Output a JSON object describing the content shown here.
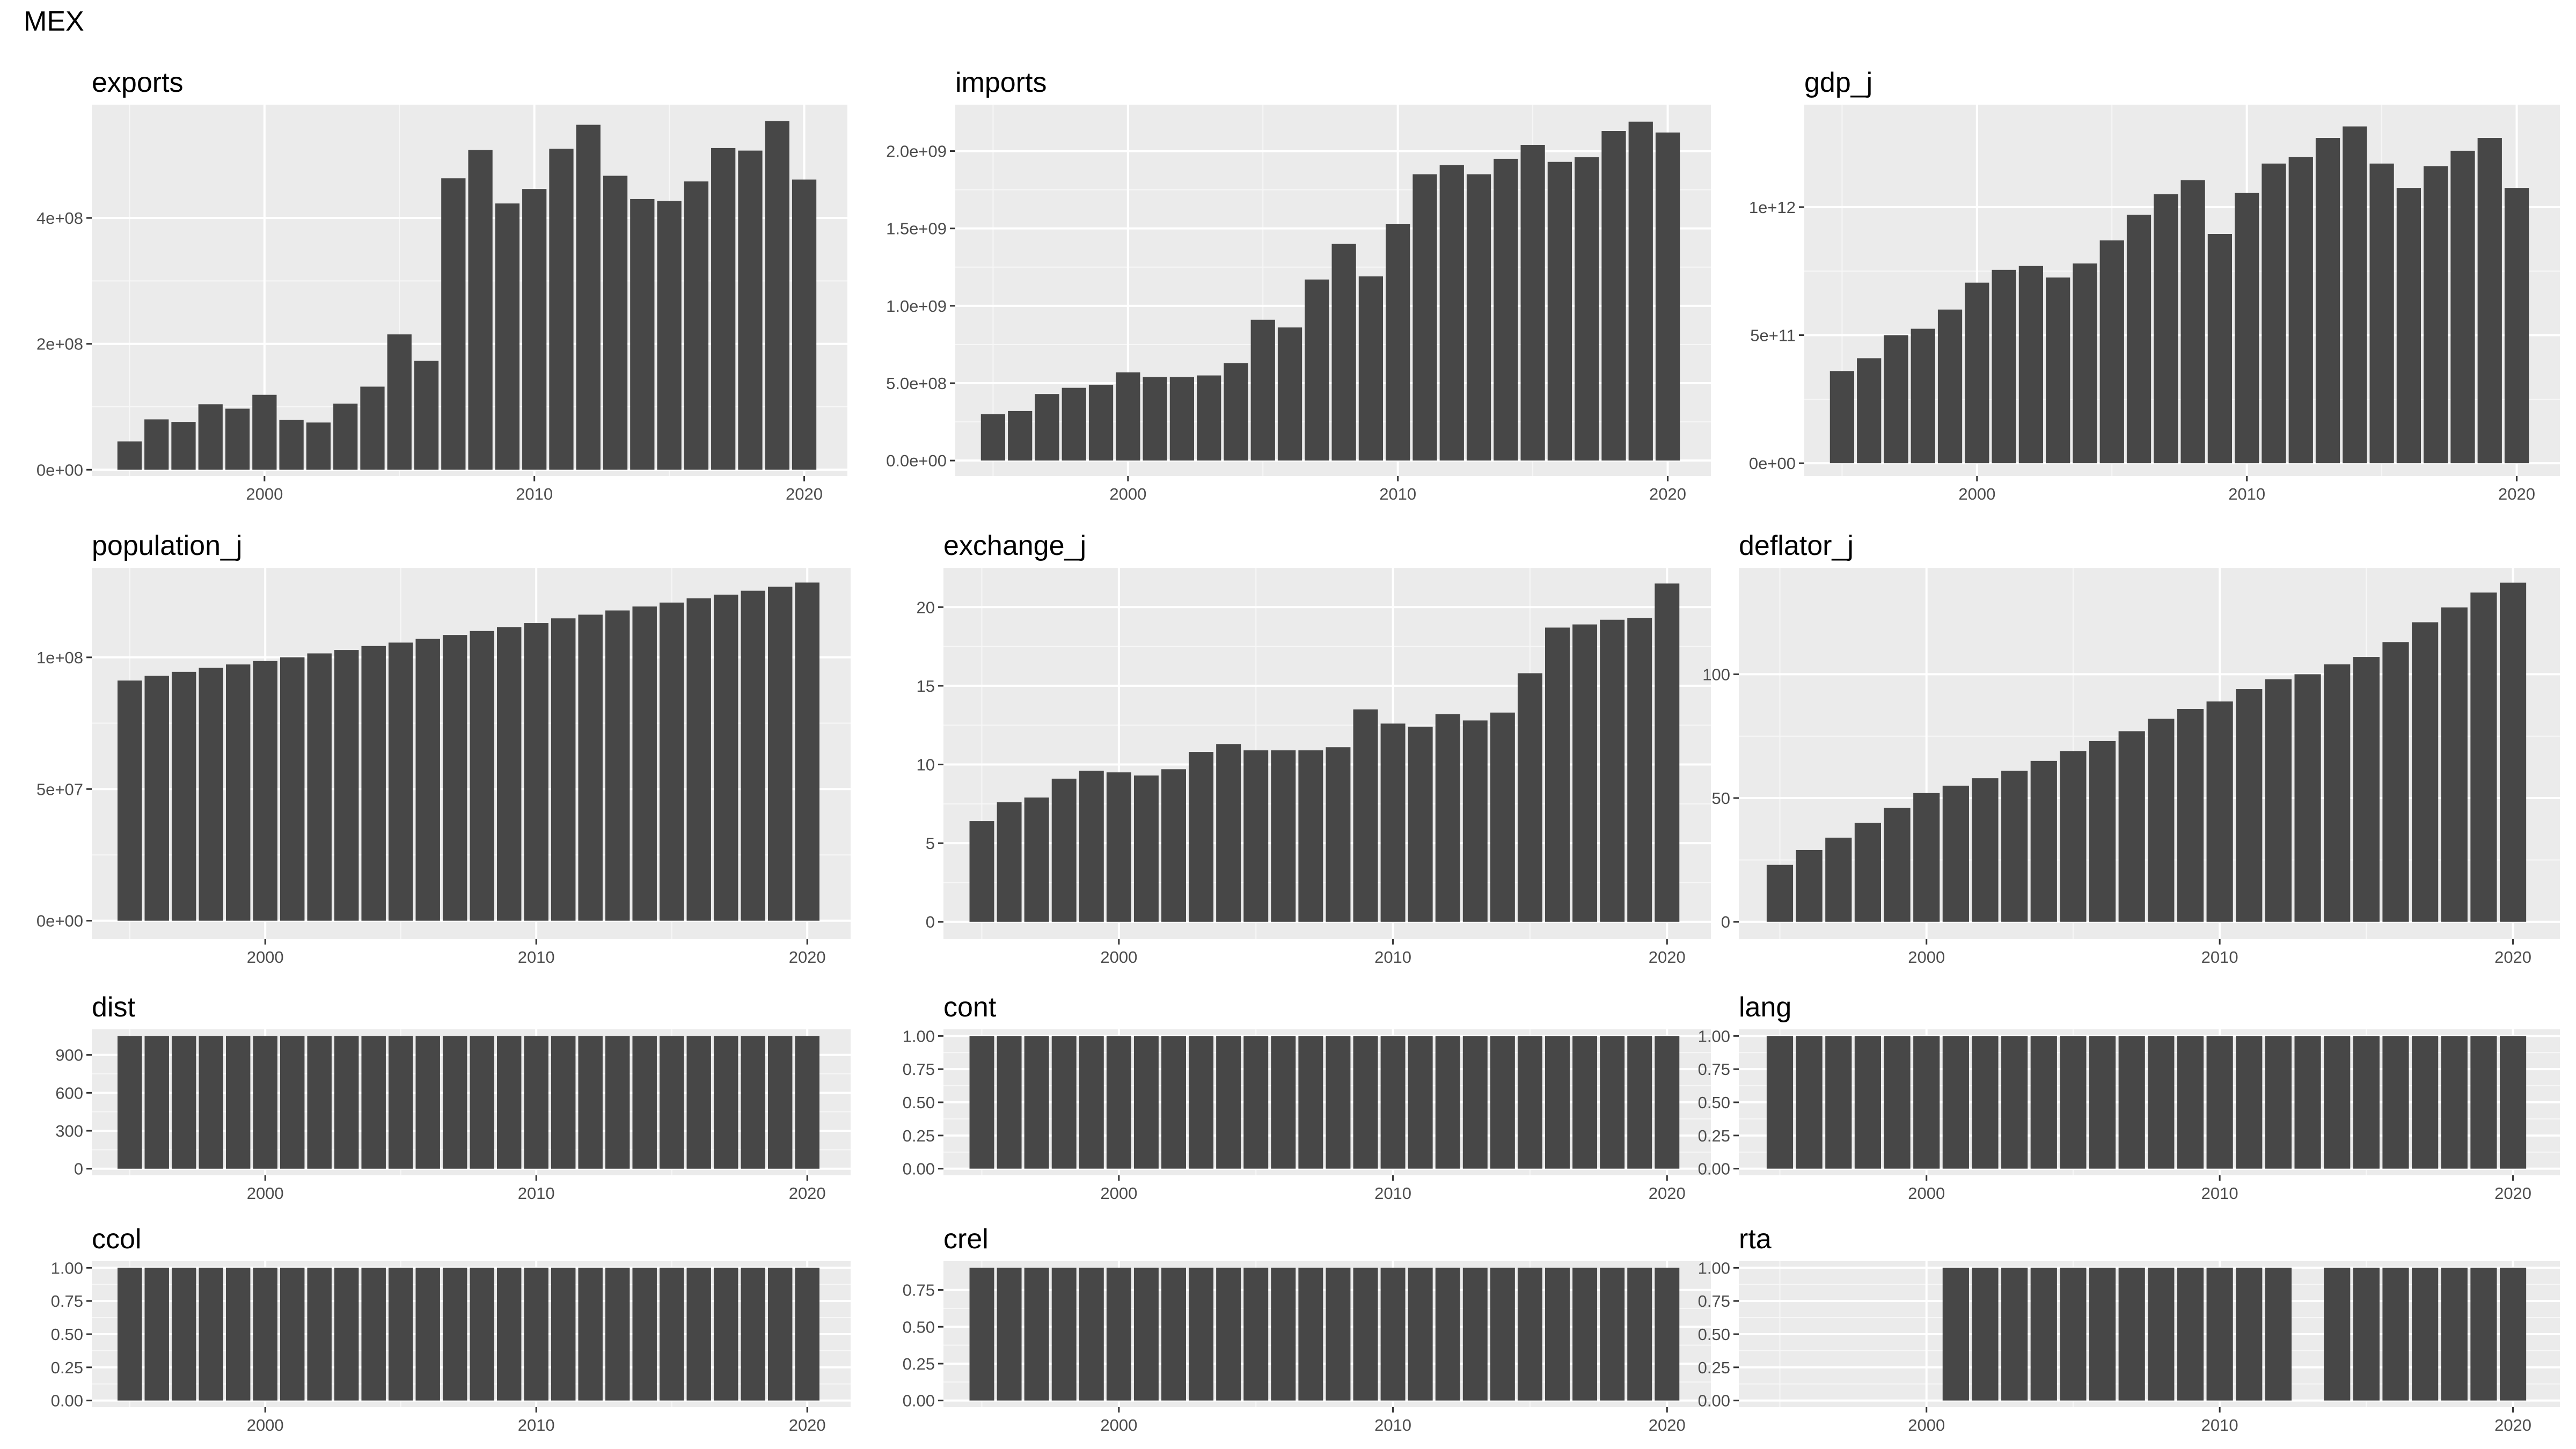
{
  "title": "MEX",
  "chart_data": [
    {
      "type": "bar",
      "title": "exports",
      "x": [
        1995,
        1996,
        1997,
        1998,
        1999,
        2000,
        2001,
        2002,
        2003,
        2004,
        2005,
        2006,
        2007,
        2008,
        2009,
        2010,
        2011,
        2012,
        2013,
        2014,
        2015,
        2016,
        2017,
        2018,
        2019,
        2020
      ],
      "values": [
        45000000,
        80000000,
        76000000,
        104000000,
        97000000,
        119000000,
        79000000,
        75000000,
        105000000,
        132000000,
        215000000,
        173000000,
        463000000,
        508000000,
        423000000,
        446000000,
        510000000,
        548000000,
        467000000,
        430000000,
        427000000,
        458000000,
        511000000,
        507000000,
        554000000,
        461000000
      ],
      "xlim": [
        1993.6,
        2021.6
      ],
      "ylim": [
        -10000000,
        580000000
      ],
      "xticks": [
        2000,
        2010,
        2020
      ],
      "xtick_labels": [
        "2000",
        "2010",
        "2020"
      ],
      "yticks": [
        0,
        200000000,
        400000000
      ],
      "ytick_labels": [
        "0e+00",
        "2e+08",
        "4e+08"
      ],
      "grid": true
    },
    {
      "type": "bar",
      "title": "imports",
      "x": [
        1995,
        1996,
        1997,
        1998,
        1999,
        2000,
        2001,
        2002,
        2003,
        2004,
        2005,
        2006,
        2007,
        2008,
        2009,
        2010,
        2011,
        2012,
        2013,
        2014,
        2015,
        2016,
        2017,
        2018,
        2019,
        2020
      ],
      "values": [
        300000000,
        320000000,
        430000000,
        470000000,
        490000000,
        570000000,
        540000000,
        540000000,
        550000000,
        630000000,
        910000000,
        860000000,
        1170000000,
        1400000000,
        1190000000,
        1530000000,
        1850000000,
        1910000000,
        1850000000,
        1950000000,
        2040000000,
        1930000000,
        1960000000,
        2130000000,
        2190000000,
        2120000000
      ],
      "xlim": [
        1993.6,
        2021.6
      ],
      "ylim": [
        -100000000,
        2300000000
      ],
      "xticks": [
        2000,
        2010,
        2020
      ],
      "xtick_labels": [
        "2000",
        "2010",
        "2020"
      ],
      "yticks": [
        0,
        500000000,
        1000000000,
        1500000000,
        2000000000
      ],
      "ytick_labels": [
        "0.0e+00",
        "5.0e+08",
        "1.0e+09",
        "1.5e+09",
        "2.0e+09"
      ],
      "grid": true
    },
    {
      "type": "bar",
      "title": "gdp_j",
      "x": [
        1995,
        1996,
        1997,
        1998,
        1999,
        2000,
        2001,
        2002,
        2003,
        2004,
        2005,
        2006,
        2007,
        2008,
        2009,
        2010,
        2011,
        2012,
        2013,
        2014,
        2015,
        2016,
        2017,
        2018,
        2019,
        2020
      ],
      "values": [
        360000000000,
        410000000000,
        500000000000,
        525000000000,
        600000000000,
        705000000000,
        755000000000,
        770000000000,
        725000000000,
        780000000000,
        870000000000,
        970000000000,
        1050000000000,
        1105000000000,
        895000000000,
        1055000000000,
        1170000000000,
        1195000000000,
        1270000000000,
        1315000000000,
        1170000000000,
        1075000000000,
        1160000000000,
        1220000000000,
        1270000000000,
        1075000000000
      ],
      "xlim": [
        1993.6,
        2021.6
      ],
      "ylim": [
        -50000000000,
        1400000000000
      ],
      "xticks": [
        2000,
        2010,
        2020
      ],
      "xtick_labels": [
        "2000",
        "2010",
        "2020"
      ],
      "yticks": [
        0,
        500000000000,
        1000000000000
      ],
      "ytick_labels": [
        "0e+00",
        "5e+11",
        "1e+12"
      ],
      "grid": true
    },
    {
      "type": "bar",
      "title": "population_j",
      "x": [
        1995,
        1996,
        1997,
        1998,
        1999,
        2000,
        2001,
        2002,
        2003,
        2004,
        2005,
        2006,
        2007,
        2008,
        2009,
        2010,
        2011,
        2012,
        2013,
        2014,
        2015,
        2016,
        2017,
        2018,
        2019,
        2020
      ],
      "values": [
        91200000,
        93000000,
        94500000,
        96000000,
        97300000,
        98600000,
        100000000,
        101500000,
        102800000,
        104300000,
        105600000,
        107000000,
        108500000,
        110000000,
        111500000,
        113000000,
        114800000,
        116200000,
        117800000,
        119300000,
        120800000,
        122400000,
        123800000,
        125300000,
        126800000,
        128400000
      ],
      "xlim": [
        1993.6,
        2021.6
      ],
      "ylim": [
        -7000000,
        134000000
      ],
      "xticks": [
        2000,
        2010,
        2020
      ],
      "xtick_labels": [
        "2000",
        "2010",
        "2020"
      ],
      "yticks": [
        0,
        50000000,
        100000000
      ],
      "ytick_labels": [
        "0e+00",
        "5e+07",
        "1e+08"
      ],
      "grid": true
    },
    {
      "type": "bar",
      "title": "exchange_j",
      "x": [
        1995,
        1996,
        1997,
        1998,
        1999,
        2000,
        2001,
        2002,
        2003,
        2004,
        2005,
        2006,
        2007,
        2008,
        2009,
        2010,
        2011,
        2012,
        2013,
        2014,
        2015,
        2016,
        2017,
        2018,
        2019,
        2020
      ],
      "values": [
        6.4,
        7.6,
        7.9,
        9.1,
        9.6,
        9.5,
        9.3,
        9.7,
        10.8,
        11.3,
        10.9,
        10.9,
        10.9,
        11.1,
        13.5,
        12.6,
        12.4,
        13.2,
        12.8,
        13.3,
        15.8,
        18.7,
        18.9,
        19.2,
        19.3,
        21.5
      ],
      "xlim": [
        1993.6,
        2021.6
      ],
      "ylim": [
        -1.1,
        22.5
      ],
      "xticks": [
        2000,
        2010,
        2020
      ],
      "xtick_labels": [
        "2000",
        "2010",
        "2020"
      ],
      "yticks": [
        0,
        5,
        10,
        15,
        20
      ],
      "ytick_labels": [
        "0",
        "5",
        "10",
        "15",
        "20"
      ],
      "grid": true
    },
    {
      "type": "bar",
      "title": "deflator_j",
      "x": [
        1995,
        1996,
        1997,
        1998,
        1999,
        2000,
        2001,
        2002,
        2003,
        2004,
        2005,
        2006,
        2007,
        2008,
        2009,
        2010,
        2011,
        2012,
        2013,
        2014,
        2015,
        2016,
        2017,
        2018,
        2019,
        2020
      ],
      "values": [
        23,
        29,
        34,
        40,
        46,
        52,
        55,
        58,
        61,
        65,
        69,
        73,
        77,
        82,
        86,
        89,
        94,
        98,
        100,
        104,
        107,
        113,
        121,
        127,
        133,
        137
      ],
      "xlim": [
        1993.6,
        2021.6
      ],
      "ylim": [
        -7,
        143
      ],
      "xticks": [
        2000,
        2010,
        2020
      ],
      "xtick_labels": [
        "2000",
        "2010",
        "2020"
      ],
      "yticks": [
        0,
        50,
        100
      ],
      "ytick_labels": [
        "0",
        "50",
        "100"
      ],
      "grid": true
    },
    {
      "type": "bar",
      "title": "dist",
      "x": [
        1995,
        1996,
        1997,
        1998,
        1999,
        2000,
        2001,
        2002,
        2003,
        2004,
        2005,
        2006,
        2007,
        2008,
        2009,
        2010,
        2011,
        2012,
        2013,
        2014,
        2015,
        2016,
        2017,
        2018,
        2019,
        2020
      ],
      "values": [
        1050,
        1050,
        1050,
        1050,
        1050,
        1050,
        1050,
        1050,
        1050,
        1050,
        1050,
        1050,
        1050,
        1050,
        1050,
        1050,
        1050,
        1050,
        1050,
        1050,
        1050,
        1050,
        1050,
        1050,
        1050,
        1050
      ],
      "xlim": [
        1993.6,
        2021.6
      ],
      "ylim": [
        -52,
        1102
      ],
      "xticks": [
        2000,
        2010,
        2020
      ],
      "xtick_labels": [
        "2000",
        "2010",
        "2020"
      ],
      "yticks": [
        0,
        300,
        600,
        900
      ],
      "ytick_labels": [
        "0",
        "300",
        "600",
        "900"
      ],
      "grid": true
    },
    {
      "type": "bar",
      "title": "cont",
      "x": [
        1995,
        1996,
        1997,
        1998,
        1999,
        2000,
        2001,
        2002,
        2003,
        2004,
        2005,
        2006,
        2007,
        2008,
        2009,
        2010,
        2011,
        2012,
        2013,
        2014,
        2015,
        2016,
        2017,
        2018,
        2019,
        2020
      ],
      "values": [
        1,
        1,
        1,
        1,
        1,
        1,
        1,
        1,
        1,
        1,
        1,
        1,
        1,
        1,
        1,
        1,
        1,
        1,
        1,
        1,
        1,
        1,
        1,
        1,
        1,
        1
      ],
      "xlim": [
        1993.6,
        2021.6
      ],
      "ylim": [
        -0.05,
        1.05
      ],
      "xticks": [
        2000,
        2010,
        2020
      ],
      "xtick_labels": [
        "2000",
        "2010",
        "2020"
      ],
      "yticks": [
        0,
        0.25,
        0.5,
        0.75,
        1
      ],
      "ytick_labels": [
        "0.00",
        "0.25",
        "0.50",
        "0.75",
        "1.00"
      ],
      "grid": true
    },
    {
      "type": "bar",
      "title": "lang",
      "x": [
        1995,
        1996,
        1997,
        1998,
        1999,
        2000,
        2001,
        2002,
        2003,
        2004,
        2005,
        2006,
        2007,
        2008,
        2009,
        2010,
        2011,
        2012,
        2013,
        2014,
        2015,
        2016,
        2017,
        2018,
        2019,
        2020
      ],
      "values": [
        1,
        1,
        1,
        1,
        1,
        1,
        1,
        1,
        1,
        1,
        1,
        1,
        1,
        1,
        1,
        1,
        1,
        1,
        1,
        1,
        1,
        1,
        1,
        1,
        1,
        1
      ],
      "xlim": [
        1993.6,
        2021.6
      ],
      "ylim": [
        -0.05,
        1.05
      ],
      "xticks": [
        2000,
        2010,
        2020
      ],
      "xtick_labels": [
        "2000",
        "2010",
        "2020"
      ],
      "yticks": [
        0,
        0.25,
        0.5,
        0.75,
        1
      ],
      "ytick_labels": [
        "0.00",
        "0.25",
        "0.50",
        "0.75",
        "1.00"
      ],
      "grid": true
    },
    {
      "type": "bar",
      "title": "ccol",
      "x": [
        1995,
        1996,
        1997,
        1998,
        1999,
        2000,
        2001,
        2002,
        2003,
        2004,
        2005,
        2006,
        2007,
        2008,
        2009,
        2010,
        2011,
        2012,
        2013,
        2014,
        2015,
        2016,
        2017,
        2018,
        2019,
        2020
      ],
      "values": [
        1,
        1,
        1,
        1,
        1,
        1,
        1,
        1,
        1,
        1,
        1,
        1,
        1,
        1,
        1,
        1,
        1,
        1,
        1,
        1,
        1,
        1,
        1,
        1,
        1,
        1
      ],
      "xlim": [
        1993.6,
        2021.6
      ],
      "ylim": [
        -0.05,
        1.05
      ],
      "xticks": [
        2000,
        2010,
        2020
      ],
      "xtick_labels": [
        "2000",
        "2010",
        "2020"
      ],
      "yticks": [
        0,
        0.25,
        0.5,
        0.75,
        1
      ],
      "ytick_labels": [
        "0.00",
        "0.25",
        "0.50",
        "0.75",
        "1.00"
      ],
      "grid": true
    },
    {
      "type": "bar",
      "title": "crel",
      "x": [
        1995,
        1996,
        1997,
        1998,
        1999,
        2000,
        2001,
        2002,
        2003,
        2004,
        2005,
        2006,
        2007,
        2008,
        2009,
        2010,
        2011,
        2012,
        2013,
        2014,
        2015,
        2016,
        2017,
        2018,
        2019,
        2020
      ],
      "values": [
        0.9,
        0.9,
        0.9,
        0.9,
        0.9,
        0.9,
        0.9,
        0.9,
        0.9,
        0.9,
        0.9,
        0.9,
        0.9,
        0.9,
        0.9,
        0.9,
        0.9,
        0.9,
        0.9,
        0.9,
        0.9,
        0.9,
        0.9,
        0.9,
        0.9,
        0.9
      ],
      "xlim": [
        1993.6,
        2021.6
      ],
      "ylim": [
        -0.045,
        0.945
      ],
      "xticks": [
        2000,
        2010,
        2020
      ],
      "xtick_labels": [
        "2000",
        "2010",
        "2020"
      ],
      "yticks": [
        0,
        0.25,
        0.5,
        0.75
      ],
      "ytick_labels": [
        "0.00",
        "0.25",
        "0.50",
        "0.75"
      ],
      "grid": true
    },
    {
      "type": "bar",
      "title": "rta",
      "x": [
        1995,
        1996,
        1997,
        1998,
        1999,
        2000,
        2001,
        2002,
        2003,
        2004,
        2005,
        2006,
        2007,
        2008,
        2009,
        2010,
        2011,
        2012,
        2013,
        2014,
        2015,
        2016,
        2017,
        2018,
        2019,
        2020
      ],
      "values": [
        0,
        0,
        0,
        0,
        0,
        0,
        1,
        1,
        1,
        1,
        1,
        1,
        1,
        1,
        1,
        1,
        1,
        1,
        0,
        1,
        1,
        1,
        1,
        1,
        1,
        1
      ],
      "xlim": [
        1993.6,
        2021.6
      ],
      "ylim": [
        -0.05,
        1.05
      ],
      "xticks": [
        2000,
        2010,
        2020
      ],
      "xtick_labels": [
        "2000",
        "2010",
        "2020"
      ],
      "yticks": [
        0,
        0.25,
        0.5,
        0.75,
        1
      ],
      "ytick_labels": [
        "0.00",
        "0.25",
        "0.50",
        "0.75",
        "1.00"
      ],
      "grid": true
    }
  ]
}
